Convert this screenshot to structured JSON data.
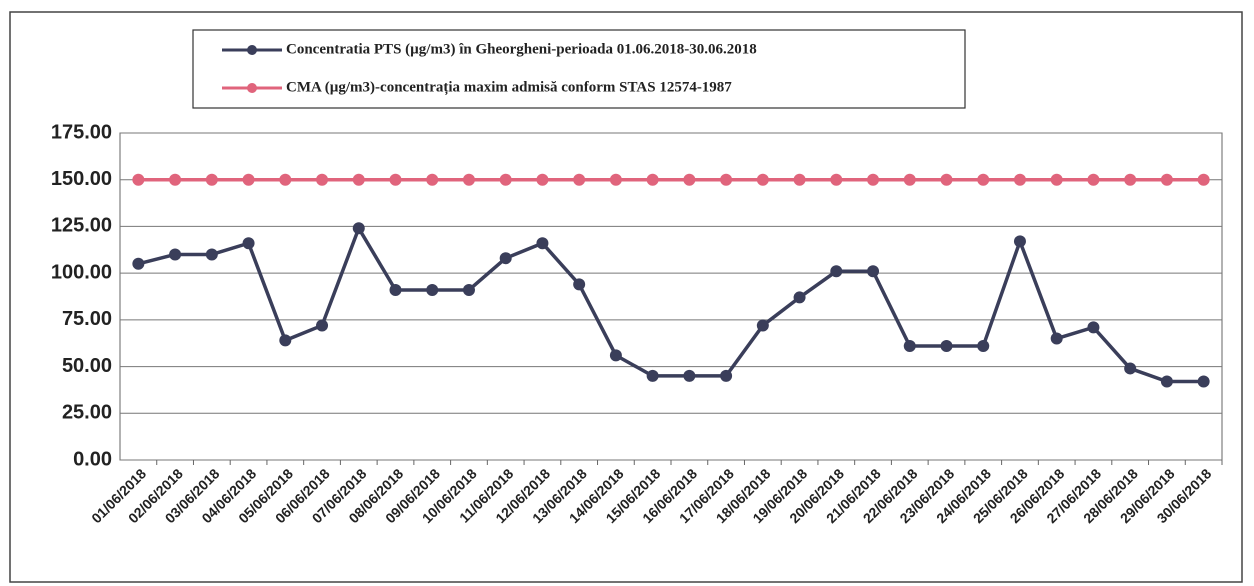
{
  "chart_data": {
    "type": "line",
    "categories": [
      "01/06/2018",
      "02/06/2018",
      "03/06/2018",
      "04/06/2018",
      "05/06/2018",
      "06/06/2018",
      "07/06/2018",
      "08/06/2018",
      "09/06/2018",
      "10/06/2018",
      "11/06/2018",
      "12/06/2018",
      "13/06/2018",
      "14/06/2018",
      "15/06/2018",
      "16/06/2018",
      "17/06/2018",
      "18/06/2018",
      "19/06/2018",
      "20/06/2018",
      "21/06/2018",
      "22/06/2018",
      "23/06/2018",
      "24/06/2018",
      "25/06/2018",
      "26/06/2018",
      "27/06/2018",
      "28/06/2018",
      "29/06/2018",
      "30/06/2018"
    ],
    "series": [
      {
        "name": "Concentratia PTS (µg/m3) în Gheorgheni-perioada 01.06.2018-30.06.2018",
        "color": "#3a3e5a",
        "values": [
          105,
          110,
          110,
          116,
          64,
          72,
          124,
          91,
          91,
          91,
          108,
          116,
          94,
          56,
          45,
          45,
          45,
          72,
          87,
          101,
          101,
          61,
          61,
          61,
          117,
          65,
          71,
          49,
          42,
          42
        ]
      },
      {
        "name": "CMA (µg/m3)-concentrația maxim admisă conform STAS 12574-1987",
        "color": "#e0647c",
        "values": [
          150,
          150,
          150,
          150,
          150,
          150,
          150,
          150,
          150,
          150,
          150,
          150,
          150,
          150,
          150,
          150,
          150,
          150,
          150,
          150,
          150,
          150,
          150,
          150,
          150,
          150,
          150,
          150,
          150,
          150
        ]
      }
    ],
    "ylim": [
      0,
      175
    ],
    "yticks": [
      {
        "value": 0,
        "label": "0.00"
      },
      {
        "value": 25,
        "label": "25.00"
      },
      {
        "value": 50,
        "label": "50.00"
      },
      {
        "value": 75,
        "label": "75.00"
      },
      {
        "value": 100,
        "label": "100.00"
      },
      {
        "value": 125,
        "label": "125.00"
      },
      {
        "value": 150,
        "label": "150.00"
      },
      {
        "value": 175,
        "label": "175.00"
      }
    ],
    "grid": true,
    "legend": "top"
  }
}
